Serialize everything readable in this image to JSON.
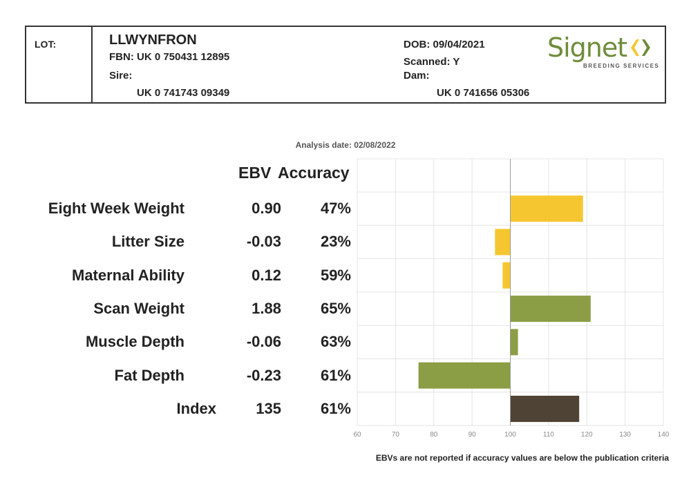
{
  "header": {
    "lot_label": "LOT:",
    "name": "LLWYNFRON",
    "fbn": "FBN: UK 0 750431 12895",
    "sire_label": "Sire:",
    "sire_id": "UK 0 741743 09349",
    "dob": "DOB: 09/04/2021",
    "scanned": "Scanned: Y",
    "dam_label": "Dam:",
    "dam_id": "UK 0 741656 05306",
    "logo_text": "Signet",
    "logo_sub": "BREEDING SERVICES"
  },
  "analysis_date": "Analysis date: 02/08/2022",
  "columns": {
    "ebv": "EBV",
    "accuracy": "Accuracy"
  },
  "footnote": "EBVs are not reported if accuracy values are below the publication criteria",
  "colors": {
    "yellow": "#f5c630",
    "green": "#8b9d45",
    "brown": "#4f4335",
    "logo_green": "#6e8c3a"
  },
  "chart_data": {
    "type": "bar",
    "orientation": "horizontal",
    "baseline": 100,
    "xlim": [
      60,
      140
    ],
    "xticks": [
      60,
      70,
      80,
      90,
      100,
      110,
      120,
      130,
      140
    ],
    "grid": true,
    "rows": [
      {
        "trait": "Eight Week Weight",
        "ebv": "0.90",
        "accuracy": "47%",
        "value": 119,
        "color": "#f5c630"
      },
      {
        "trait": "Litter Size",
        "ebv": "-0.03",
        "accuracy": "23%",
        "value": 96,
        "color": "#f5c630"
      },
      {
        "trait": "Maternal Ability",
        "ebv": "0.12",
        "accuracy": "59%",
        "value": 98,
        "color": "#f5c630"
      },
      {
        "trait": "Scan Weight",
        "ebv": "1.88",
        "accuracy": "65%",
        "value": 121,
        "color": "#8b9d45"
      },
      {
        "trait": "Muscle Depth",
        "ebv": "-0.06",
        "accuracy": "63%",
        "value": 102,
        "color": "#8b9d45"
      },
      {
        "trait": "Fat Depth",
        "ebv": "-0.23",
        "accuracy": "61%",
        "value": 76,
        "color": "#8b9d45"
      },
      {
        "trait": "Index",
        "ebv": "135",
        "accuracy": "61%",
        "value": 118,
        "color": "#4f4335"
      }
    ]
  }
}
